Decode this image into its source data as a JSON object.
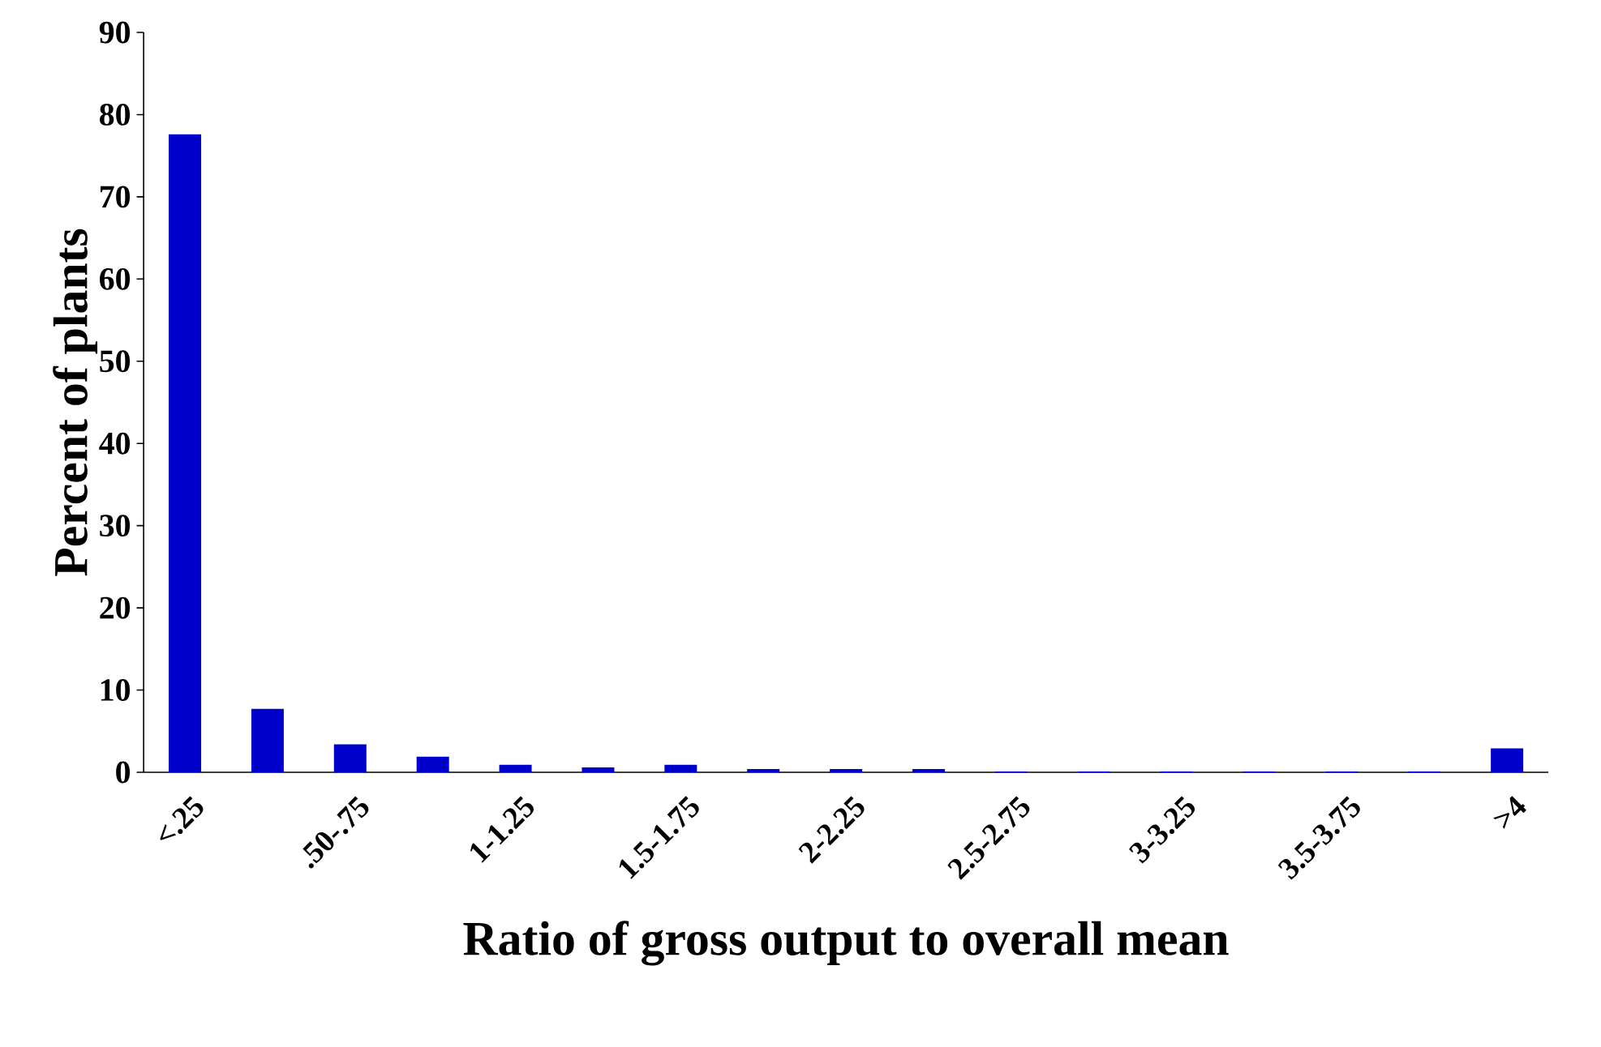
{
  "chart_data": {
    "type": "bar",
    "xlabel": "Ratio of gross output to overall mean",
    "ylabel": "Percent of plants",
    "categories": [
      "<.25",
      null,
      ".50-.75",
      null,
      "1-1.25",
      null,
      "1.5-1.75",
      null,
      "2-2.25",
      null,
      "2.5-2.75",
      null,
      "3-3.25",
      null,
      "3.5-3.75",
      null,
      ">4"
    ],
    "values": [
      77.6,
      7.7,
      3.4,
      1.9,
      0.9,
      0.6,
      0.9,
      0.4,
      0.4,
      0.4,
      0.1,
      0.1,
      0.1,
      0.1,
      0.1,
      0.1,
      2.9
    ],
    "color": "#0000cc",
    "ylim": [
      0,
      90
    ],
    "yticks": [
      0,
      10,
      20,
      30,
      40,
      50,
      60,
      70,
      80,
      90
    ]
  }
}
